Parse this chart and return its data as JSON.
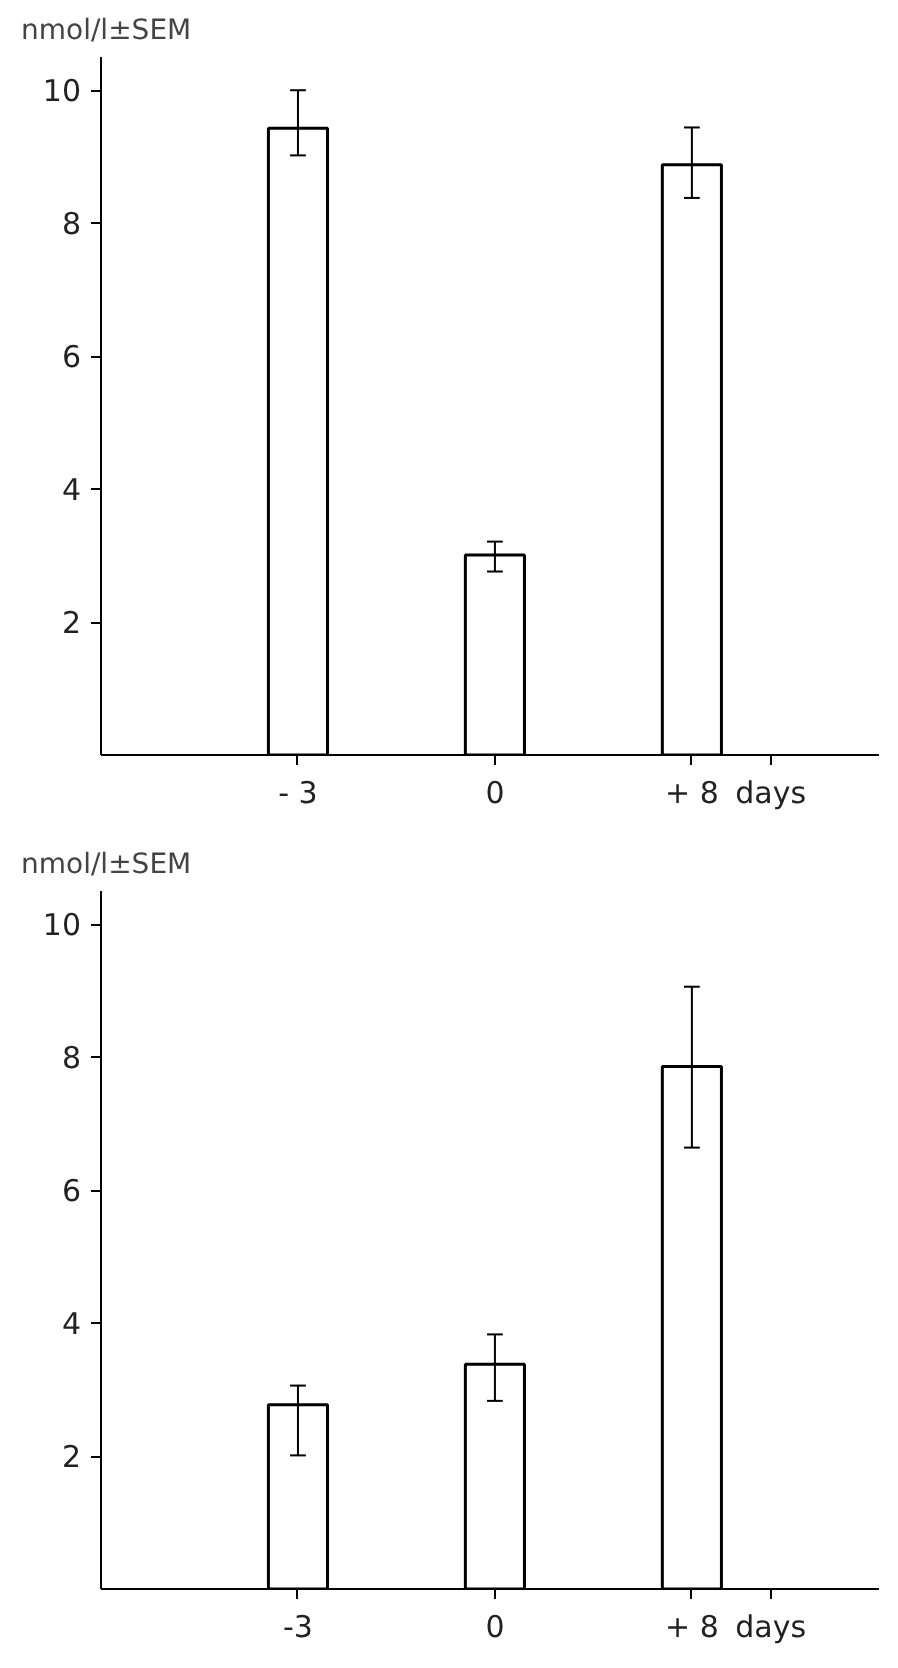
{
  "chart_data": [
    {
      "type": "bar",
      "ylabel": "nmol/l±SEM",
      "xlabel": "days",
      "categories": [
        "- 3",
        "0",
        "+ 8"
      ],
      "values": [
        9.43,
        3.01,
        8.88
      ],
      "errors": [
        [
          9.02,
          10.0
        ],
        [
          2.76,
          3.21
        ],
        [
          8.38,
          9.44
        ]
      ],
      "color": "#ffffff",
      "ylim": [
        0,
        10.5
      ],
      "yticks": [
        2,
        4,
        6,
        8,
        10
      ],
      "grid": false
    },
    {
      "type": "bar",
      "ylabel": "nmol/l±SEM",
      "xlabel": "days",
      "categories": [
        "-3",
        "0",
        "+ 8"
      ],
      "values": [
        2.77,
        3.38,
        7.86
      ],
      "errors": [
        [
          2.01,
          3.06
        ],
        [
          2.83,
          3.83
        ],
        [
          6.64,
          9.06
        ]
      ],
      "color": "#ffffff",
      "ylim": [
        0,
        10.5
      ],
      "yticks": [
        2,
        4,
        6,
        8,
        10
      ],
      "grid": false
    }
  ]
}
